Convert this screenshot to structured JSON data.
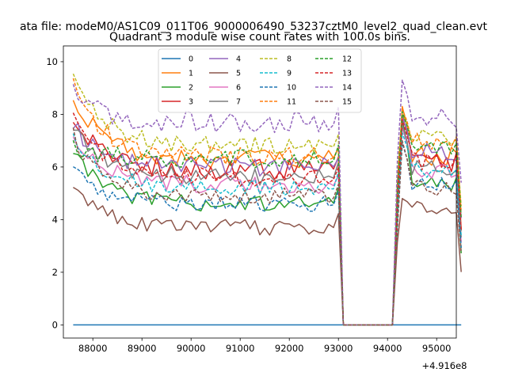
{
  "chart_data": {
    "type": "line",
    "suptitle": "ata file: modeM0/AS1C09_011T06_9000006490_53237cztM0_level2_quad_clean.evt",
    "title": "Quadrant 3 module wise count rates with 100.0s bins.",
    "xlabel": "",
    "ylabel": "",
    "x_offset_label": "+4.916e8",
    "xlim": [
      87400,
      95400
    ],
    "ylim": [
      -0.5,
      10.6
    ],
    "x_ticks": [
      88000,
      89000,
      90000,
      91000,
      92000,
      93000,
      94000,
      95000
    ],
    "x_tick_labels": [
      "88000",
      "89000",
      "90000",
      "91000",
      "92000",
      "93000",
      "94000",
      "95000"
    ],
    "y_ticks": [
      0,
      2,
      4,
      6,
      8,
      10
    ],
    "y_tick_labels": [
      "0",
      "2",
      "4",
      "6",
      "8",
      "10"
    ],
    "legend_location": "upper center",
    "legend_columns": 4,
    "x_start": 87600,
    "x_step": 100,
    "segments": [
      {
        "start_index": 0,
        "length": 55
      },
      {
        "start_index": 55,
        "length": 10
      },
      {
        "start_index": 65,
        "length": 15
      }
    ],
    "series": [
      {
        "name": "0",
        "color": "#1f77b4",
        "dash": "solid",
        "base": 0,
        "post": 0,
        "decay": 0,
        "spike": 0,
        "noise": 0,
        "seed": 1
      },
      {
        "name": "1",
        "color": "#ff7f0e",
        "dash": "solid",
        "base": 6.3,
        "post": 6.4,
        "decay": 2.5,
        "spike": 1.9,
        "noise": 0.35,
        "seed": 2
      },
      {
        "name": "2",
        "color": "#2ca02c",
        "dash": "solid",
        "base": 4.6,
        "post": 5.4,
        "decay": 2.1,
        "spike": 2.4,
        "noise": 0.3,
        "seed": 3
      },
      {
        "name": "3",
        "color": "#d62728",
        "dash": "solid",
        "base": 5.9,
        "post": 6.2,
        "decay": 2.0,
        "spike": 1.8,
        "noise": 0.4,
        "seed": 4
      },
      {
        "name": "4",
        "color": "#9467bd",
        "dash": "solid",
        "base": 6.0,
        "post": 6.6,
        "decay": 1.6,
        "spike": 1.3,
        "noise": 0.35,
        "seed": 5
      },
      {
        "name": "5",
        "color": "#8c564b",
        "dash": "solid",
        "base": 3.7,
        "post": 4.5,
        "decay": 1.6,
        "spike": 0.3,
        "noise": 0.3,
        "seed": 6
      },
      {
        "name": "6",
        "color": "#e377c2",
        "dash": "solid",
        "base": 5.3,
        "post": 5.9,
        "decay": 1.9,
        "spike": 1.6,
        "noise": 0.35,
        "seed": 7
      },
      {
        "name": "7",
        "color": "#7f7f7f",
        "dash": "solid",
        "base": 5.6,
        "post": 6.0,
        "decay": 1.8,
        "spike": 1.6,
        "noise": 0.35,
        "seed": 8
      },
      {
        "name": "8",
        "color": "#bcbd22",
        "dash": "dashed",
        "base": 6.8,
        "post": 7.1,
        "decay": 2.7,
        "spike": 0.9,
        "noise": 0.35,
        "seed": 9
      },
      {
        "name": "9",
        "color": "#17becf",
        "dash": "dashed",
        "base": 5.2,
        "post": 5.9,
        "decay": 2.0,
        "spike": 1.4,
        "noise": 0.3,
        "seed": 10
      },
      {
        "name": "10",
        "color": "#1f77b4",
        "dash": "dashed",
        "base": 4.6,
        "post": 5.4,
        "decay": 1.3,
        "spike": 1.5,
        "noise": 0.3,
        "seed": 11
      },
      {
        "name": "11",
        "color": "#ff7f0e",
        "dash": "dashed",
        "base": 6.4,
        "post": 7.0,
        "decay": 2.8,
        "spike": 1.2,
        "noise": 0.35,
        "seed": 12
      },
      {
        "name": "12",
        "color": "#2ca02c",
        "dash": "dashed",
        "base": 6.3,
        "post": 6.7,
        "decay": 0.5,
        "spike": 1.4,
        "noise": 0.35,
        "seed": 13
      },
      {
        "name": "13",
        "color": "#d62728",
        "dash": "dashed",
        "base": 5.6,
        "post": 6.2,
        "decay": 2.2,
        "spike": 1.6,
        "noise": 0.35,
        "seed": 14
      },
      {
        "name": "14",
        "color": "#9467bd",
        "dash": "dashed",
        "base": 7.7,
        "post": 7.9,
        "decay": 1.1,
        "spike": 1.4,
        "noise": 0.4,
        "seed": 15
      },
      {
        "name": "15",
        "color": "#8c564b",
        "dash": "dashed",
        "base": 4.9,
        "post": 5.2,
        "decay": 2.3,
        "spike": 1.8,
        "noise": 0.3,
        "seed": 16
      }
    ]
  }
}
